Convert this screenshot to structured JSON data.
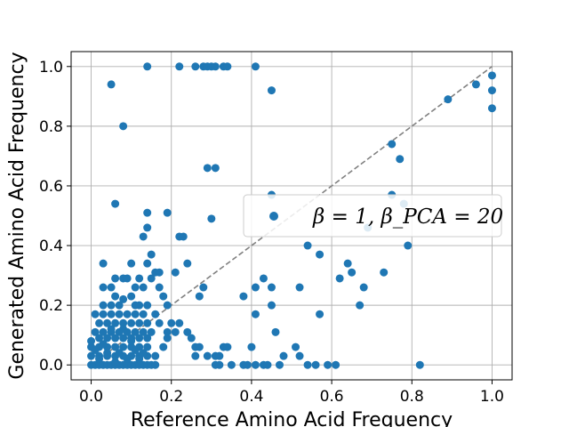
{
  "chart_data": {
    "type": "scatter",
    "xlabel": "Reference Amino Acid Frequency",
    "ylabel": "Generated Amino Acid Frequency",
    "xlim": [
      -0.05,
      1.05
    ],
    "ylim": [
      -0.05,
      1.05
    ],
    "xticks": [
      0.0,
      0.2,
      0.4,
      0.6,
      0.8,
      1.0
    ],
    "xtick_labels": [
      "0.0",
      "0.2",
      "0.4",
      "0.6",
      "0.8",
      "1.0"
    ],
    "yticks": [
      0.0,
      0.2,
      0.4,
      0.6,
      0.8,
      1.0
    ],
    "ytick_labels": [
      "0.0",
      "0.2",
      "0.4",
      "0.6",
      "0.8",
      "1.0"
    ],
    "grid": true,
    "legend_placement": "center-right",
    "colors": {
      "points": "#1f77b4",
      "reference_line": "#808080",
      "grid": "#b0b0b0"
    },
    "reference_line": {
      "style": "dashed",
      "from": [
        0.0,
        0.0
      ],
      "to": [
        1.0,
        1.0
      ]
    },
    "series": [
      {
        "name": "β = 1, β_PCA = 20",
        "points": [
          [
            0.14,
            1.0
          ],
          [
            0.22,
            1.0
          ],
          [
            0.26,
            1.0
          ],
          [
            0.28,
            1.0
          ],
          [
            0.29,
            1.0
          ],
          [
            0.3,
            1.0
          ],
          [
            0.31,
            1.0
          ],
          [
            0.33,
            1.0
          ],
          [
            0.34,
            1.0
          ],
          [
            0.41,
            1.0
          ],
          [
            0.05,
            0.94
          ],
          [
            0.45,
            0.92
          ],
          [
            0.08,
            0.8
          ],
          [
            0.29,
            0.66
          ],
          [
            0.31,
            0.66
          ],
          [
            0.06,
            0.54
          ],
          [
            0.14,
            0.51
          ],
          [
            0.19,
            0.51
          ],
          [
            0.3,
            0.49
          ],
          [
            0.14,
            0.46
          ],
          [
            0.13,
            0.43
          ],
          [
            0.22,
            0.43
          ],
          [
            0.23,
            0.43
          ],
          [
            0.15,
            0.37
          ],
          [
            0.03,
            0.34
          ],
          [
            0.1,
            0.34
          ],
          [
            0.14,
            0.34
          ],
          [
            0.21,
            0.31
          ],
          [
            0.24,
            0.34
          ],
          [
            0.16,
            0.31
          ],
          [
            0.17,
            0.31
          ],
          [
            0.12,
            0.29
          ],
          [
            0.15,
            0.29
          ],
          [
            0.06,
            0.29
          ],
          [
            0.08,
            0.29
          ],
          [
            0.09,
            0.29
          ],
          [
            0.03,
            0.26
          ],
          [
            0.05,
            0.26
          ],
          [
            0.11,
            0.26
          ],
          [
            0.13,
            0.26
          ],
          [
            0.17,
            0.26
          ],
          [
            0.28,
            0.26
          ],
          [
            0.38,
            0.23
          ],
          [
            0.27,
            0.23
          ],
          [
            0.18,
            0.23
          ],
          [
            0.1,
            0.23
          ],
          [
            0.06,
            0.23
          ],
          [
            0.05,
            0.2
          ],
          [
            0.07,
            0.2
          ],
          [
            0.12,
            0.2
          ],
          [
            0.14,
            0.2
          ],
          [
            0.19,
            0.2
          ],
          [
            0.41,
            0.26
          ],
          [
            0.43,
            0.29
          ],
          [
            0.45,
            0.26
          ],
          [
            0.41,
            0.17
          ],
          [
            0.45,
            0.2
          ],
          [
            0.46,
            0.11
          ],
          [
            0.4,
            0.06
          ],
          [
            0.52,
            0.26
          ],
          [
            0.54,
            0.4
          ],
          [
            0.57,
            0.37
          ],
          [
            0.57,
            0.17
          ],
          [
            0.62,
            0.29
          ],
          [
            0.64,
            0.34
          ],
          [
            0.65,
            0.31
          ],
          [
            0.67,
            0.2
          ],
          [
            0.68,
            0.26
          ],
          [
            0.69,
            0.46
          ],
          [
            0.73,
            0.31
          ],
          [
            0.75,
            0.57
          ],
          [
            0.75,
            0.74
          ],
          [
            0.77,
            0.69
          ],
          [
            0.78,
            0.54
          ],
          [
            0.79,
            0.4
          ],
          [
            0.89,
            0.89
          ],
          [
            0.96,
            0.94
          ],
          [
            1.0,
            0.97
          ],
          [
            1.0,
            0.92
          ],
          [
            1.0,
            0.86
          ],
          [
            0.45,
            0.57
          ],
          [
            0.01,
            0.17
          ],
          [
            0.03,
            0.17
          ],
          [
            0.05,
            0.17
          ],
          [
            0.07,
            0.17
          ],
          [
            0.09,
            0.17
          ],
          [
            0.11,
            0.17
          ],
          [
            0.13,
            0.17
          ],
          [
            0.16,
            0.17
          ],
          [
            0.2,
            0.14
          ],
          [
            0.22,
            0.14
          ],
          [
            0.02,
            0.14
          ],
          [
            0.04,
            0.14
          ],
          [
            0.06,
            0.14
          ],
          [
            0.08,
            0.14
          ],
          [
            0.1,
            0.14
          ],
          [
            0.12,
            0.14
          ],
          [
            0.14,
            0.14
          ],
          [
            0.17,
            0.14
          ],
          [
            0.01,
            0.11
          ],
          [
            0.03,
            0.11
          ],
          [
            0.05,
            0.11
          ],
          [
            0.07,
            0.11
          ],
          [
            0.09,
            0.11
          ],
          [
            0.11,
            0.11
          ],
          [
            0.13,
            0.11
          ],
          [
            0.15,
            0.11
          ],
          [
            0.19,
            0.11
          ],
          [
            0.21,
            0.11
          ],
          [
            0.24,
            0.11
          ],
          [
            0.25,
            0.09
          ],
          [
            0.02,
            0.09
          ],
          [
            0.04,
            0.09
          ],
          [
            0.06,
            0.09
          ],
          [
            0.08,
            0.09
          ],
          [
            0.1,
            0.09
          ],
          [
            0.12,
            0.09
          ],
          [
            0.14,
            0.09
          ],
          [
            0.19,
            0.09
          ],
          [
            0.26,
            0.06
          ],
          [
            0.27,
            0.06
          ],
          [
            0.18,
            0.06
          ],
          [
            0.0,
            0.06
          ],
          [
            0.02,
            0.06
          ],
          [
            0.04,
            0.06
          ],
          [
            0.06,
            0.06
          ],
          [
            0.08,
            0.06
          ],
          [
            0.1,
            0.06
          ],
          [
            0.12,
            0.06
          ],
          [
            0.14,
            0.06
          ],
          [
            0.0,
            0.03
          ],
          [
            0.02,
            0.03
          ],
          [
            0.04,
            0.03
          ],
          [
            0.06,
            0.03
          ],
          [
            0.08,
            0.03
          ],
          [
            0.1,
            0.03
          ],
          [
            0.12,
            0.03
          ],
          [
            0.14,
            0.03
          ],
          [
            0.16,
            0.03
          ],
          [
            0.26,
            0.03
          ],
          [
            0.29,
            0.03
          ],
          [
            0.31,
            0.03
          ],
          [
            0.32,
            0.03
          ],
          [
            0.33,
            0.06
          ],
          [
            0.34,
            0.06
          ],
          [
            0.0,
            0.0
          ],
          [
            0.01,
            0.0
          ],
          [
            0.02,
            0.0
          ],
          [
            0.03,
            0.0
          ],
          [
            0.04,
            0.0
          ],
          [
            0.05,
            0.0
          ],
          [
            0.06,
            0.0
          ],
          [
            0.07,
            0.0
          ],
          [
            0.08,
            0.0
          ],
          [
            0.09,
            0.0
          ],
          [
            0.1,
            0.0
          ],
          [
            0.11,
            0.0
          ],
          [
            0.12,
            0.0
          ],
          [
            0.13,
            0.0
          ],
          [
            0.14,
            0.0
          ],
          [
            0.15,
            0.0
          ],
          [
            0.16,
            0.0
          ],
          [
            0.31,
            0.0
          ],
          [
            0.32,
            0.0
          ],
          [
            0.35,
            0.0
          ],
          [
            0.38,
            0.0
          ],
          [
            0.39,
            0.0
          ],
          [
            0.41,
            0.0
          ],
          [
            0.43,
            0.0
          ],
          [
            0.44,
            0.0
          ],
          [
            0.47,
            0.0
          ],
          [
            0.48,
            0.03
          ],
          [
            0.51,
            0.06
          ],
          [
            0.52,
            0.03
          ],
          [
            0.54,
            0.0
          ],
          [
            0.56,
            0.0
          ],
          [
            0.59,
            0.0
          ],
          [
            0.61,
            0.0
          ],
          [
            0.82,
            0.0
          ],
          [
            0.0,
            0.08
          ],
          [
            0.01,
            0.05
          ],
          [
            0.02,
            0.02
          ],
          [
            0.03,
            0.07
          ],
          [
            0.04,
            0.04
          ],
          [
            0.05,
            0.12
          ],
          [
            0.06,
            0.01
          ],
          [
            0.07,
            0.04
          ],
          [
            0.08,
            0.12
          ],
          [
            0.09,
            0.02
          ],
          [
            0.1,
            0.08
          ],
          [
            0.11,
            0.05
          ],
          [
            0.12,
            0.02
          ],
          [
            0.13,
            0.04
          ],
          [
            0.03,
            0.2
          ],
          [
            0.08,
            0.22
          ],
          [
            0.11,
            0.2
          ]
        ]
      }
    ]
  }
}
